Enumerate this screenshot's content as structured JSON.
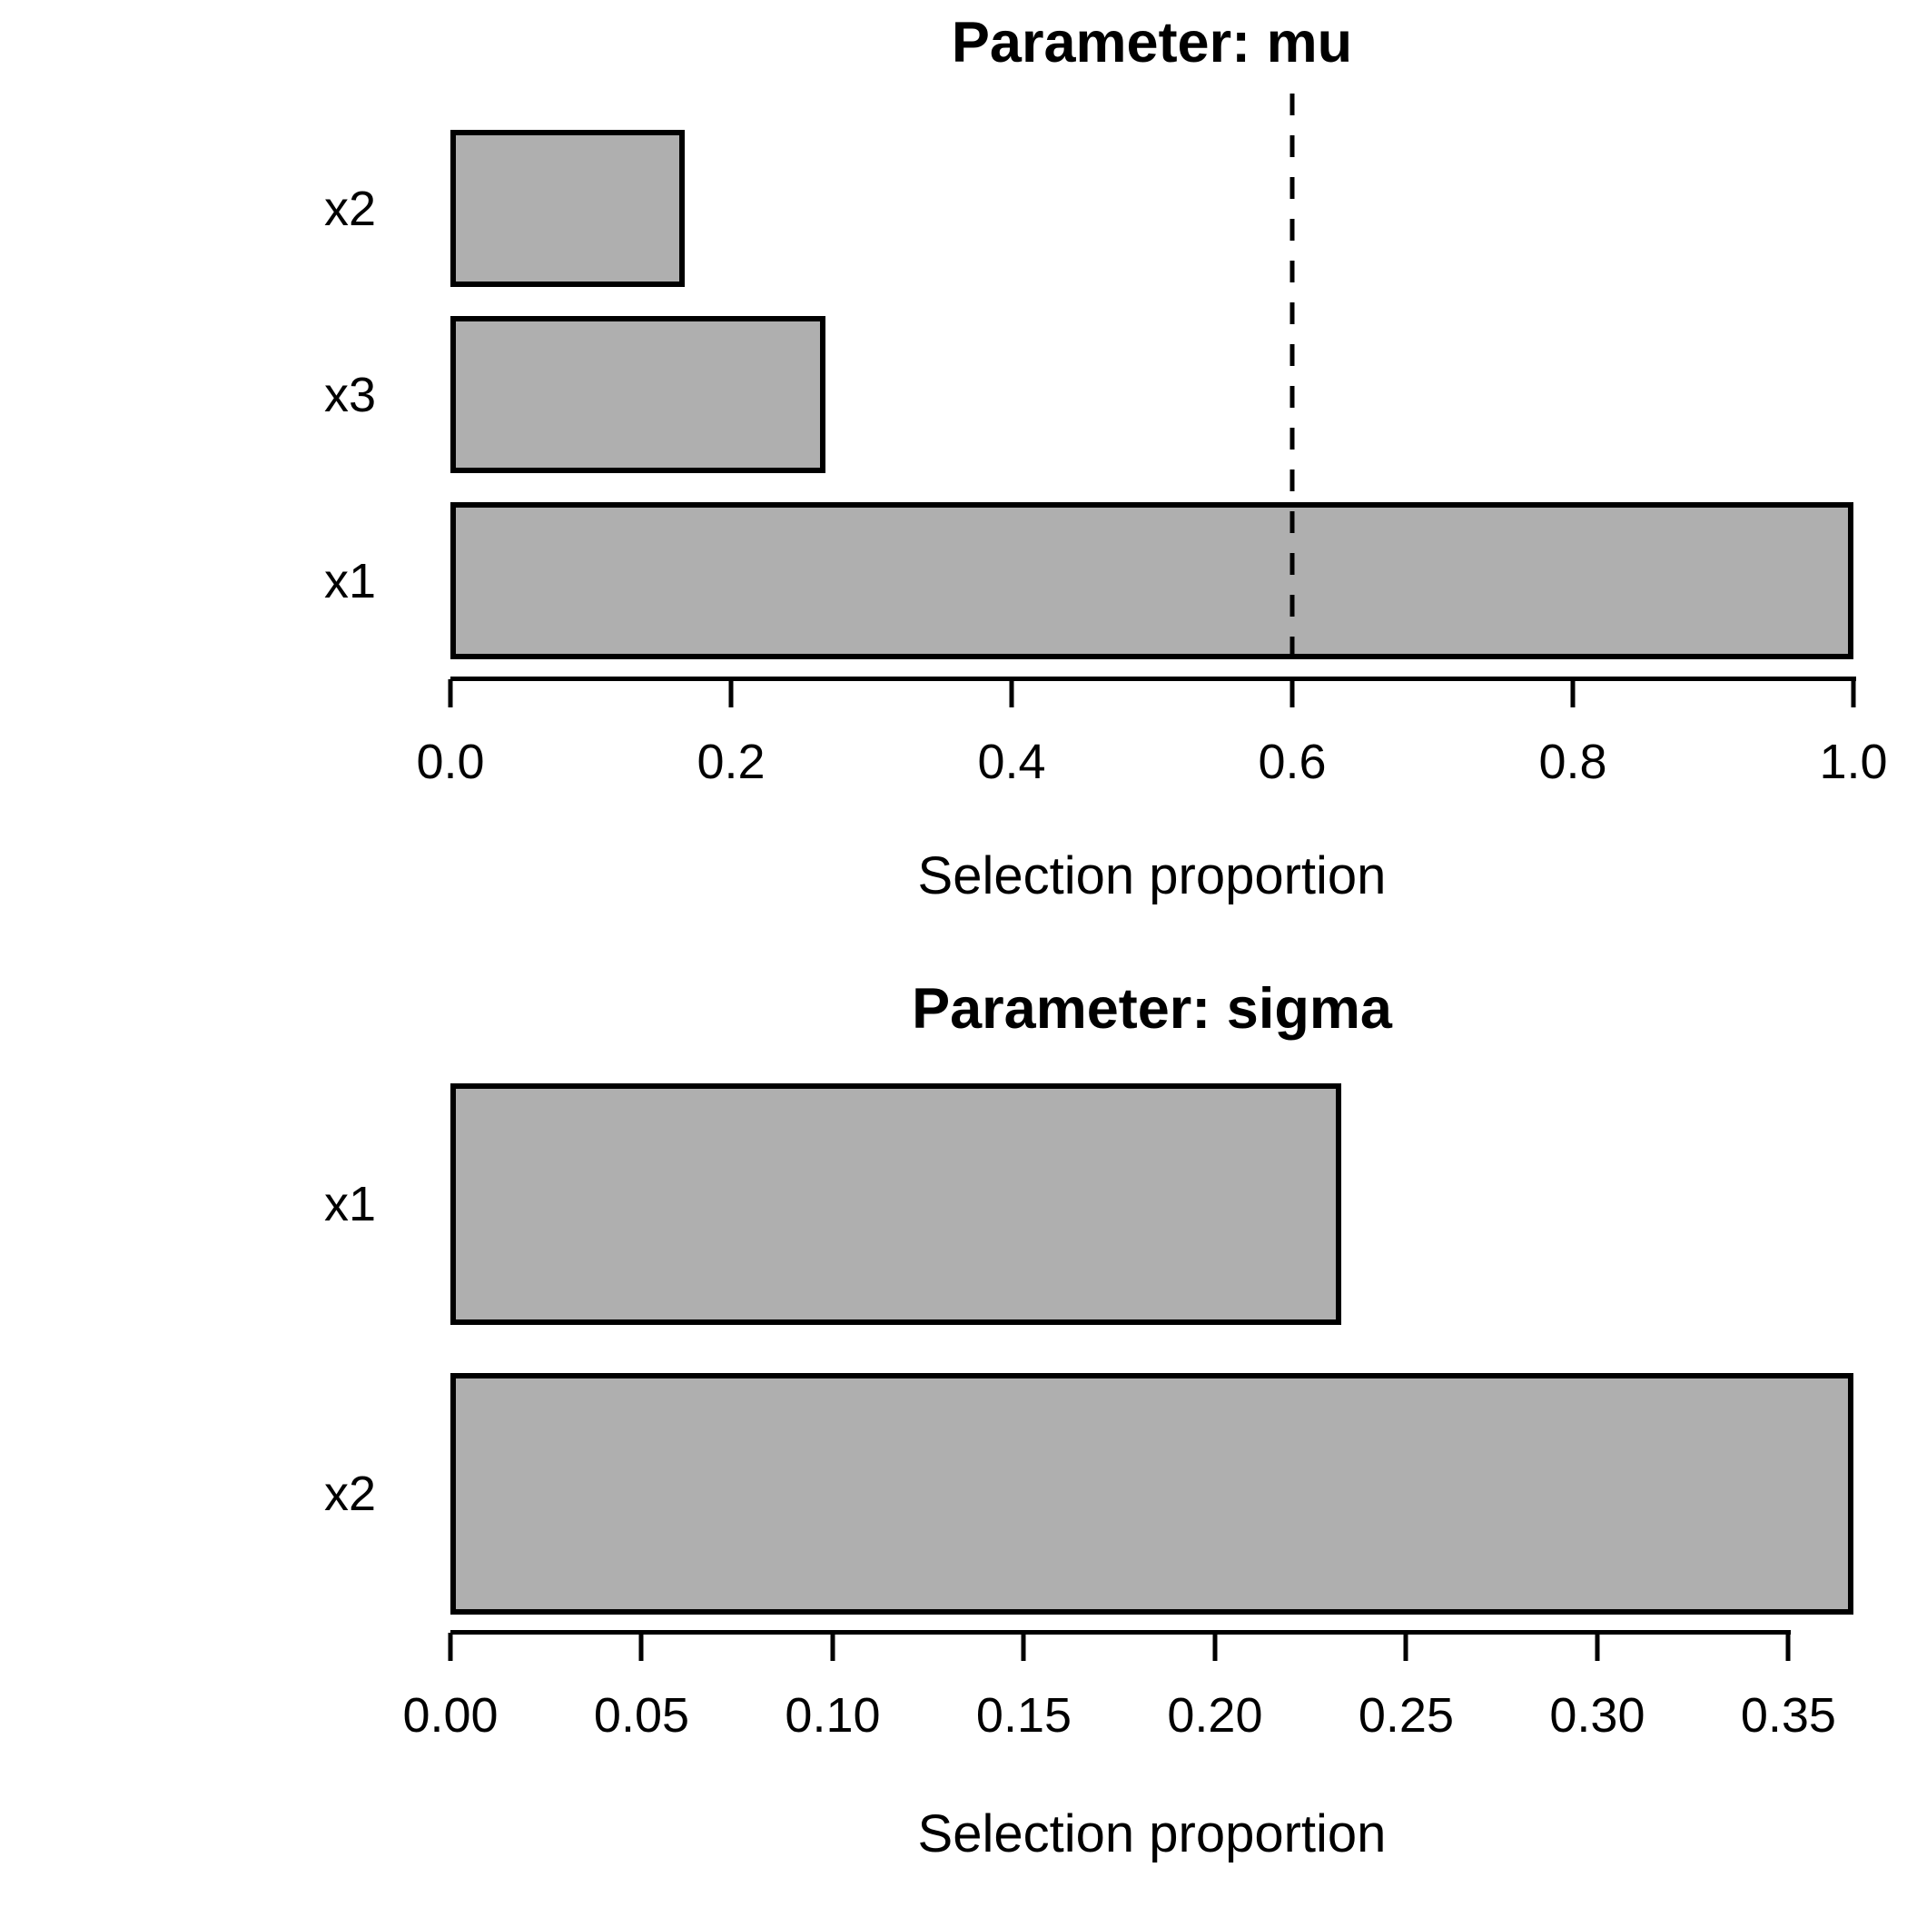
{
  "figure": {
    "background_color": "#FFFFFF",
    "bar_fill_color": "#AFAFAF",
    "bar_border_color": "#000000",
    "axis_color": "#000000",
    "text_color": "#000000"
  },
  "chart_data": [
    {
      "type": "bar",
      "orientation": "horizontal",
      "title": "Parameter: mu",
      "xlabel": "Selection proportion",
      "categories": [
        "x2",
        "x3",
        "x1"
      ],
      "values": [
        0.167,
        0.267,
        1.0
      ],
      "xlim": [
        0,
        1.0
      ],
      "xticks": [
        0.0,
        0.2,
        0.4,
        0.6,
        0.8,
        1.0
      ],
      "tick_labels": [
        "0.0",
        "0.2",
        "0.4",
        "0.6",
        "0.8",
        "1.0"
      ],
      "cutoff": 0.6,
      "cutoff_style": "dashed",
      "grid": false,
      "legend": null
    },
    {
      "type": "bar",
      "orientation": "horizontal",
      "title": "Parameter: sigma",
      "xlabel": "Selection proportion",
      "categories": [
        "x1",
        "x2"
      ],
      "values": [
        0.233,
        0.367
      ],
      "xlim": [
        0,
        0.367
      ],
      "xticks": [
        0.0,
        0.05,
        0.1,
        0.15,
        0.2,
        0.25,
        0.3,
        0.35
      ],
      "tick_labels": [
        "0.00",
        "0.05",
        "0.10",
        "0.15",
        "0.20",
        "0.25",
        "0.30",
        "0.35"
      ],
      "cutoff": null,
      "grid": false,
      "legend": null
    }
  ]
}
